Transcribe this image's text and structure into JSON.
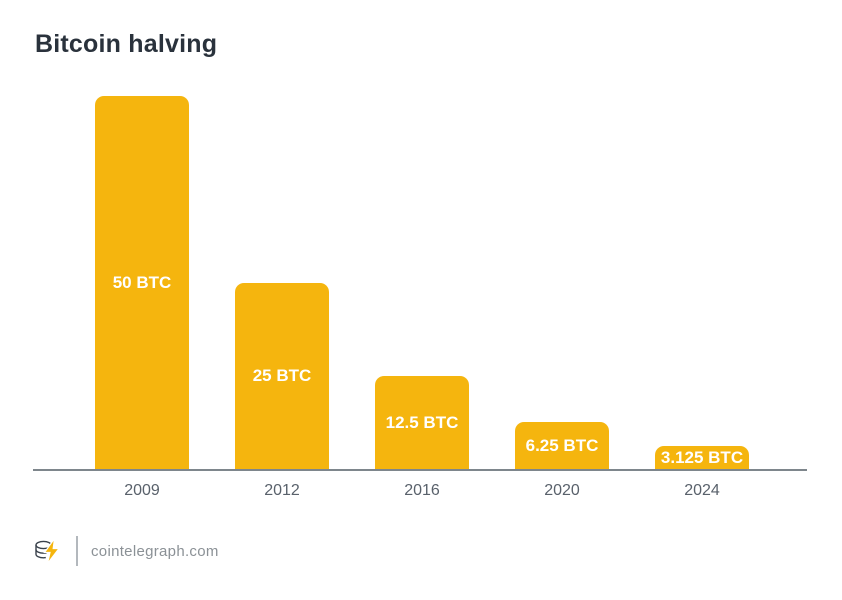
{
  "page": {
    "title": "Bitcoin halving",
    "background": "#ffffff"
  },
  "chart_data": {
    "type": "bar",
    "title": "Bitcoin halving",
    "categories": [
      "2009",
      "2012",
      "2016",
      "2020",
      "2024"
    ],
    "values": [
      50,
      25,
      12.5,
      6.25,
      3.125
    ],
    "bar_labels": [
      "50 BTC",
      "25 BTC",
      "12.5 BTC",
      "6.25 BTC",
      "3.125 BTC"
    ],
    "xlabel": "",
    "ylabel": "",
    "ylim": [
      0,
      50
    ],
    "grid": false,
    "legend": false,
    "bar_color": "#f5b50e",
    "bar_label_color": "#ffffff",
    "axis_line_color": "#7e868c",
    "tick_label_color": "#59616b"
  },
  "footer": {
    "brand": "cointelegraph.com",
    "logo_icon": "cointelegraph-coin-stack-lightning-icon"
  },
  "colors": {
    "accent": "#f5b50e",
    "title_text": "#2a323c",
    "footer_text": "#8b9196"
  }
}
